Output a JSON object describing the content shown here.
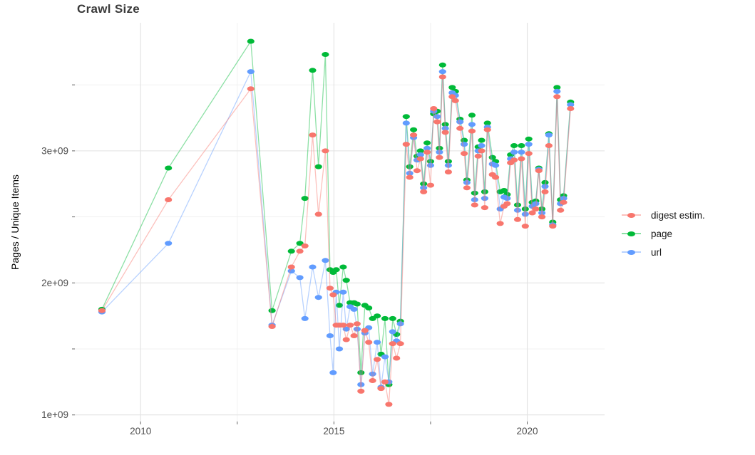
{
  "chart_data": {
    "type": "line",
    "title": "Crawl Size",
    "xlabel": "",
    "ylabel": "Pages / Unique Items",
    "value_unit": "1e9 (billions)",
    "grid": true,
    "legend_position": "right",
    "x_ticks": [
      {
        "label": "2010",
        "year": 2010
      },
      {
        "label": "2015",
        "year": 2015
      },
      {
        "label": "2020",
        "year": 2020
      }
    ],
    "x_minor_years": [
      2012.5,
      2017.5
    ],
    "y_ticks": [
      {
        "label": "1e+09",
        "value": 1.0
      },
      {
        "label": "2e+09",
        "value": 2.0
      },
      {
        "label": "3e+09",
        "value": 3.0
      }
    ],
    "y_minor_values": [
      1.5,
      2.5,
      3.5
    ],
    "x_range": [
      2008.3,
      2022.0
    ],
    "y_range": [
      0.95,
      3.97
    ],
    "series": [
      {
        "name": "digest estim.",
        "key": "digest",
        "color": "#F8766D"
      },
      {
        "name": "page",
        "key": "page",
        "color": "#00BA38"
      },
      {
        "name": "url",
        "key": "url",
        "color": "#619CFF"
      }
    ],
    "point_format": [
      "year",
      "digest estim.",
      "page",
      "url"
    ],
    "points": [
      [
        2009.0,
        1.79,
        1.8,
        1.78
      ],
      [
        2010.72,
        2.63,
        2.87,
        2.3
      ],
      [
        2012.85,
        3.47,
        3.83,
        3.6
      ],
      [
        2013.4,
        1.67,
        1.79,
        1.68
      ],
      [
        2013.9,
        2.12,
        2.24,
        2.09
      ],
      [
        2014.12,
        2.24,
        2.3,
        2.04
      ],
      [
        2014.25,
        2.28,
        2.64,
        1.73
      ],
      [
        2014.45,
        3.12,
        3.61,
        2.12
      ],
      [
        2014.6,
        2.52,
        2.88,
        1.89
      ],
      [
        2014.78,
        3.0,
        3.73,
        2.17
      ],
      [
        2014.9,
        1.96,
        2.1,
        1.6
      ],
      [
        2014.98,
        1.91,
        2.08,
        1.32
      ],
      [
        2015.06,
        1.68,
        2.1,
        1.93
      ],
      [
        2015.14,
        1.68,
        1.83,
        1.5
      ],
      [
        2015.24,
        1.68,
        2.12,
        1.93
      ],
      [
        2015.32,
        1.57,
        2.02,
        1.65
      ],
      [
        2015.42,
        1.68,
        1.85,
        1.82
      ],
      [
        2015.52,
        1.6,
        1.85,
        1.8
      ],
      [
        2015.6,
        1.69,
        1.84,
        1.65
      ],
      [
        2015.7,
        1.18,
        1.32,
        1.23
      ],
      [
        2015.8,
        1.64,
        1.83,
        1.62
      ],
      [
        2015.9,
        1.55,
        1.81,
        1.66
      ],
      [
        2016.0,
        1.26,
        1.73,
        1.31
      ],
      [
        2016.12,
        1.42,
        1.75,
        1.55
      ],
      [
        2016.22,
        1.2,
        1.46,
        1.21
      ],
      [
        2016.32,
        1.25,
        1.73,
        1.44
      ],
      [
        2016.42,
        1.08,
        1.23,
        1.25
      ],
      [
        2016.52,
        1.54,
        1.73,
        1.63
      ],
      [
        2016.62,
        1.43,
        1.61,
        1.56
      ],
      [
        2016.72,
        1.54,
        1.71,
        1.69
      ],
      [
        2016.87,
        3.05,
        3.26,
        3.21
      ],
      [
        2016.96,
        2.8,
        2.88,
        2.83
      ],
      [
        2017.06,
        3.12,
        3.16,
        3.1
      ],
      [
        2017.15,
        2.85,
        2.96,
        2.93
      ],
      [
        2017.24,
        2.94,
        3.0,
        2.97
      ],
      [
        2017.32,
        2.69,
        2.75,
        2.72
      ],
      [
        2017.41,
        2.99,
        3.06,
        3.02
      ],
      [
        2017.5,
        2.74,
        2.92,
        2.89
      ],
      [
        2017.58,
        3.32,
        3.28,
        3.3
      ],
      [
        2017.67,
        3.22,
        3.3,
        3.26
      ],
      [
        2017.73,
        2.95,
        3.02,
        2.99
      ],
      [
        2017.81,
        3.56,
        3.65,
        3.6
      ],
      [
        2017.88,
        3.14,
        3.2,
        3.17
      ],
      [
        2017.96,
        2.84,
        2.92,
        2.89
      ],
      [
        2018.06,
        3.41,
        3.48,
        3.44
      ],
      [
        2018.14,
        3.38,
        3.45,
        3.42
      ],
      [
        2018.26,
        3.17,
        3.24,
        3.22
      ],
      [
        2018.37,
        2.98,
        3.08,
        3.05
      ],
      [
        2018.44,
        2.72,
        2.78,
        2.76
      ],
      [
        2018.57,
        3.15,
        3.27,
        3.2
      ],
      [
        2018.64,
        2.59,
        2.68,
        2.63
      ],
      [
        2018.73,
        2.96,
        3.03,
        3.0
      ],
      [
        2018.82,
        3.0,
        3.08,
        3.04
      ],
      [
        2018.9,
        2.57,
        2.69,
        2.64
      ],
      [
        2018.97,
        3.16,
        3.21,
        3.18
      ],
      [
        2019.1,
        2.82,
        2.95,
        2.9
      ],
      [
        2019.18,
        2.8,
        2.92,
        2.89
      ],
      [
        2019.3,
        2.45,
        2.69,
        2.56
      ],
      [
        2019.4,
        2.58,
        2.7,
        2.65
      ],
      [
        2019.48,
        2.6,
        2.67,
        2.64
      ],
      [
        2019.57,
        2.91,
        2.97,
        2.94
      ],
      [
        2019.66,
        2.93,
        3.04,
        2.99
      ],
      [
        2019.75,
        2.48,
        2.59,
        2.55
      ],
      [
        2019.85,
        2.94,
        3.04,
        2.99
      ],
      [
        2019.95,
        2.43,
        2.56,
        2.52
      ],
      [
        2020.04,
        2.98,
        3.09,
        3.05
      ],
      [
        2020.13,
        2.53,
        2.61,
        2.58
      ],
      [
        2020.22,
        2.56,
        2.62,
        2.6
      ],
      [
        2020.3,
        2.85,
        2.87,
        2.86
      ],
      [
        2020.38,
        2.5,
        2.56,
        2.53
      ],
      [
        2020.46,
        2.69,
        2.76,
        2.73
      ],
      [
        2020.56,
        3.04,
        3.13,
        3.12
      ],
      [
        2020.66,
        2.43,
        2.46,
        2.44
      ],
      [
        2020.77,
        3.41,
        3.48,
        3.45
      ],
      [
        2020.86,
        2.55,
        2.63,
        2.6
      ],
      [
        2020.94,
        2.61,
        2.66,
        2.64
      ],
      [
        2021.12,
        3.32,
        3.37,
        3.35
      ]
    ],
    "style": {
      "grid_major_color": "#E2E2E2",
      "grid_minor_color": "#EFEFEF",
      "tick_mark_color": "#666666",
      "tick_label_color": "#4d4d4d",
      "line_opacity": 0.45
    }
  }
}
